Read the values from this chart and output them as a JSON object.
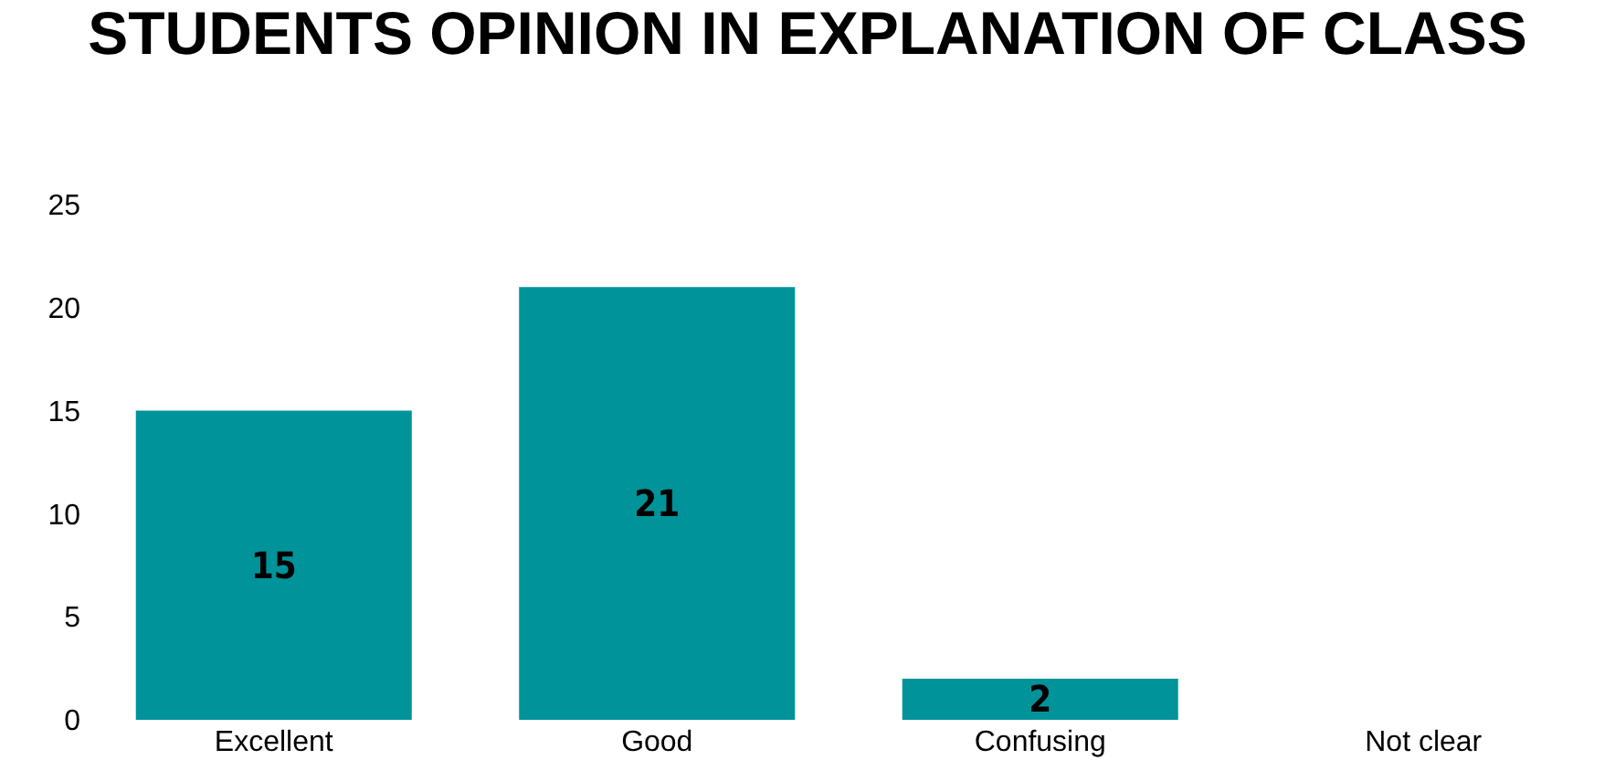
{
  "chart_data": {
    "type": "bar",
    "title": "STUDENTS OPINION IN EXPLANATION OF CLASS",
    "categories": [
      "Excellent",
      "Good",
      "Confusing",
      "Not clear"
    ],
    "values": [
      15,
      21,
      2,
      0
    ],
    "value_labels": [
      "15",
      "21",
      "2",
      null
    ],
    "color": "#00939a",
    "ylim": [
      0,
      25
    ],
    "yticks": [
      0,
      5,
      10,
      15,
      20,
      25
    ],
    "grid": false
  }
}
